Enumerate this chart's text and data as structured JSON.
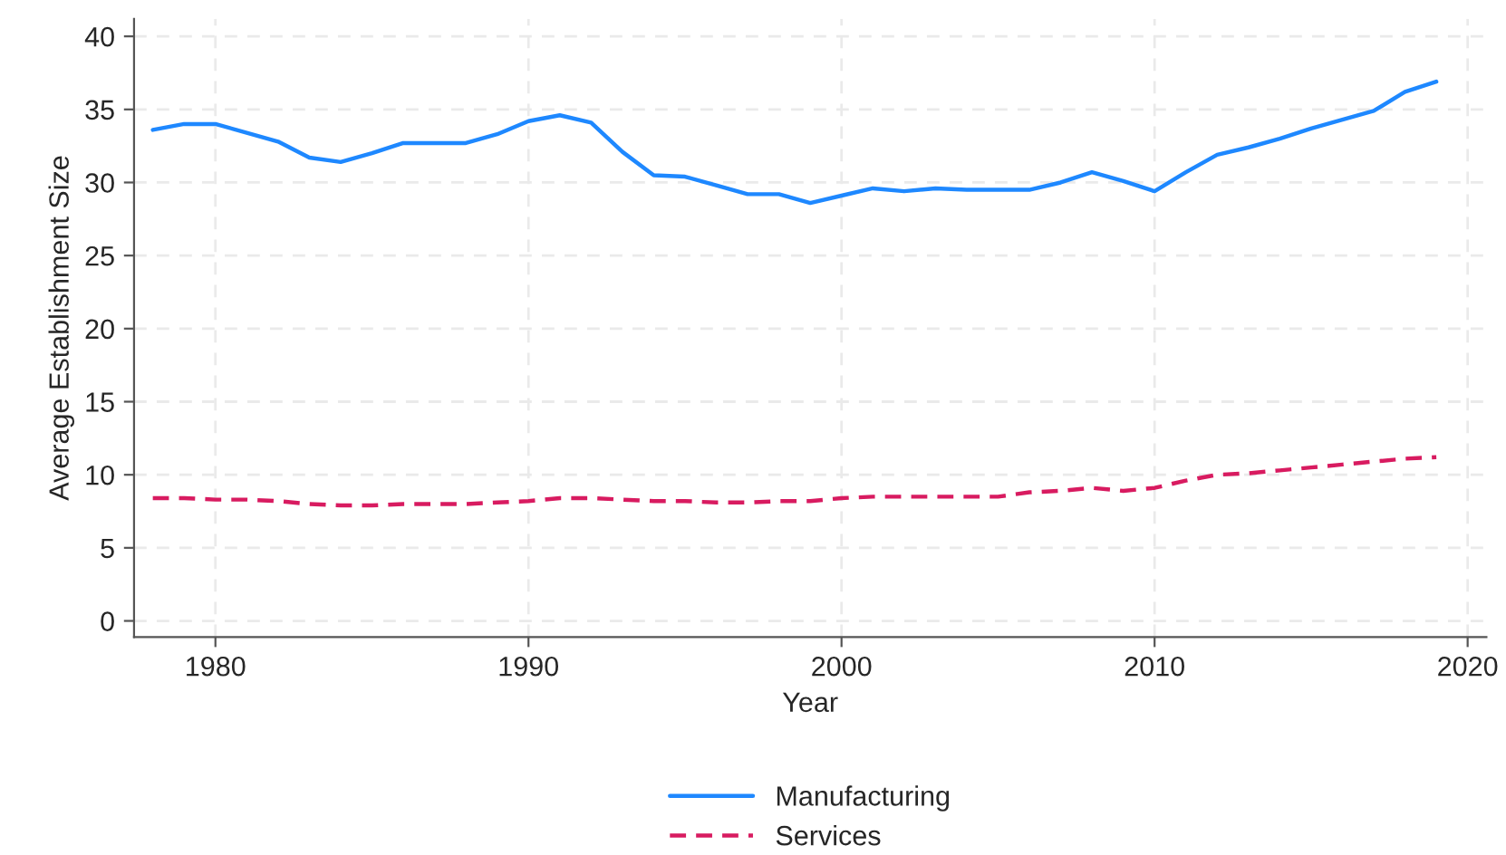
{
  "chart_data": {
    "type": "line",
    "xlabel": "Year",
    "ylabel": "Average Establishment Size",
    "x": [
      1978,
      1979,
      1980,
      1981,
      1982,
      1983,
      1984,
      1985,
      1986,
      1987,
      1988,
      1989,
      1990,
      1991,
      1992,
      1993,
      1994,
      1995,
      1996,
      1997,
      1998,
      1999,
      2000,
      2001,
      2002,
      2003,
      2004,
      2005,
      2006,
      2007,
      2008,
      2009,
      2010,
      2011,
      2012,
      2013,
      2014,
      2015,
      2016,
      2017,
      2018,
      2019
    ],
    "series": [
      {
        "name": "Manufacturing",
        "color": "#1e88ff",
        "line_style": "solid",
        "values": [
          33.6,
          34.0,
          34.0,
          33.4,
          32.8,
          31.7,
          31.4,
          32.0,
          32.7,
          32.7,
          32.7,
          33.3,
          34.2,
          34.6,
          34.1,
          32.1,
          30.5,
          30.4,
          29.8,
          29.2,
          29.2,
          28.6,
          29.1,
          29.6,
          29.4,
          29.6,
          29.5,
          29.5,
          29.5,
          30.0,
          30.7,
          30.1,
          29.4,
          30.7,
          31.9,
          32.4,
          33.0,
          33.7,
          34.3,
          34.9,
          36.2,
          36.9
        ]
      },
      {
        "name": "Services",
        "color": "#d81b60",
        "line_style": "dashed",
        "values": [
          8.4,
          8.4,
          8.3,
          8.3,
          8.2,
          8.0,
          7.9,
          7.9,
          8.0,
          8.0,
          8.0,
          8.1,
          8.2,
          8.4,
          8.4,
          8.3,
          8.2,
          8.2,
          8.1,
          8.1,
          8.2,
          8.2,
          8.4,
          8.5,
          8.5,
          8.5,
          8.5,
          8.5,
          8.8,
          8.9,
          9.1,
          8.9,
          9.1,
          9.6,
          10.0,
          10.1,
          10.3,
          10.5,
          10.7,
          10.9,
          11.1,
          11.2
        ]
      }
    ],
    "xlim": [
      1977.4,
      2020.6
    ],
    "xticks": [
      1980,
      1990,
      2000,
      2010,
      2020
    ],
    "ylim": [
      -1.1,
      41.2
    ],
    "yticks": [
      0,
      5,
      10,
      15,
      20,
      25,
      30,
      35,
      40
    ],
    "grid": true,
    "legend": "bottom",
    "marker": "none"
  }
}
